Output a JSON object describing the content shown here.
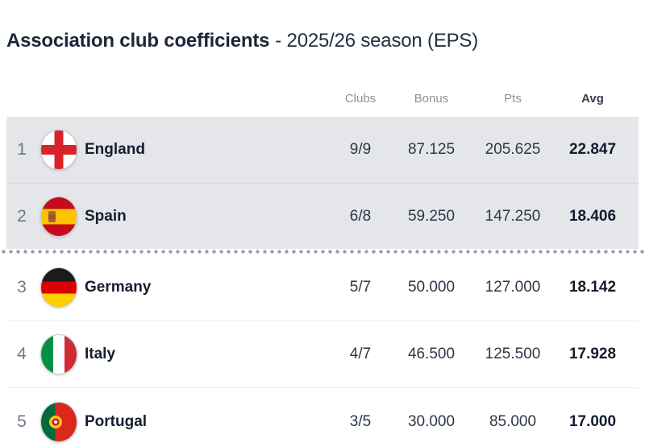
{
  "title": {
    "main": "Association club coefficients",
    "suffix": "- 2025/26 season (EPS)"
  },
  "table": {
    "columns": {
      "clubs": "Clubs",
      "bonus": "Bonus",
      "pts": "Pts",
      "avg": "Avg"
    },
    "cutoff_after_rank": 2,
    "rows": [
      {
        "rank": "1",
        "country": "England",
        "flag": "england-flag-icon",
        "clubs": "9/9",
        "bonus": "87.125",
        "pts": "205.625",
        "avg": "22.847",
        "highlighted": true
      },
      {
        "rank": "2",
        "country": "Spain",
        "flag": "spain-flag-icon",
        "clubs": "6/8",
        "bonus": "59.250",
        "pts": "147.250",
        "avg": "18.406",
        "highlighted": true
      },
      {
        "rank": "3",
        "country": "Germany",
        "flag": "germany-flag-icon",
        "clubs": "5/7",
        "bonus": "50.000",
        "pts": "127.000",
        "avg": "18.142",
        "highlighted": false
      },
      {
        "rank": "4",
        "country": "Italy",
        "flag": "italy-flag-icon",
        "clubs": "4/7",
        "bonus": "46.500",
        "pts": "125.500",
        "avg": "17.928",
        "highlighted": false
      },
      {
        "rank": "5",
        "country": "Portugal",
        "flag": "portugal-flag-icon",
        "clubs": "3/5",
        "bonus": "30.000",
        "pts": "85.000",
        "avg": "17.000",
        "highlighted": false
      }
    ]
  },
  "colors": {
    "highlight_row_bg": "#e4e6e9",
    "text_dark": "#141e30",
    "header_muted": "#8a919b",
    "rank_muted": "#6e7888",
    "cutoff_dot": "#99a0a8"
  }
}
